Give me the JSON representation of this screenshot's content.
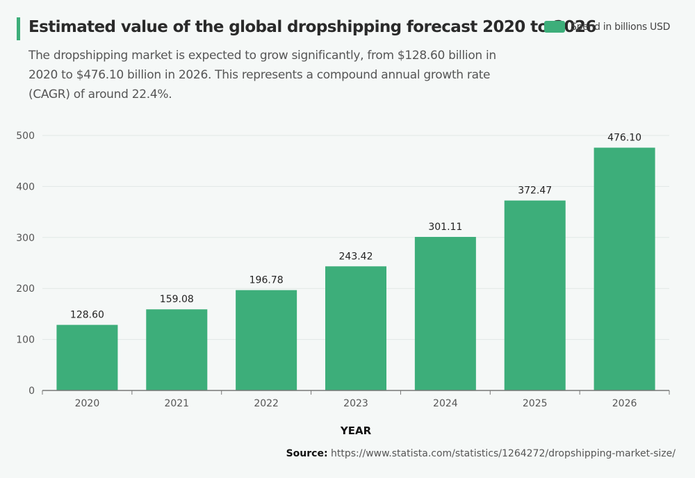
{
  "title": "Estimated value of the global dropshipping forecast 2020 to 2026",
  "subtitle": "The dropshipping market is expected to grow significantly, from $128.60 billion in 2020 to $476.10 billion in 2026. This represents a compound annual growth rate (CAGR) of around 22.4%.",
  "source_label": "Source:",
  "source_url": "https://www.statista.com/statistics/1264272/dropshipping-market-size/",
  "colors": {
    "bar": "#3dae7a",
    "accent": "#3dae7a",
    "background": "#f5f8f7"
  },
  "chart_data": {
    "type": "bar",
    "categories": [
      "2020",
      "2021",
      "2022",
      "2023",
      "2024",
      "2025",
      "2026"
    ],
    "series": [
      {
        "name": "Spend in billions USD",
        "values": [
          128.6,
          159.08,
          196.78,
          243.42,
          301.11,
          372.47,
          476.1
        ]
      }
    ],
    "data_labels": [
      "128.60",
      "159.08",
      "196.78",
      "243.42",
      "301.11",
      "372.47",
      "476.10"
    ],
    "xlabel": "YEAR",
    "ylabel": "",
    "ylim": [
      0,
      500
    ],
    "yticks": [
      "0",
      "100",
      "200",
      "300",
      "400",
      "500"
    ],
    "grid": true,
    "legend": "top-right"
  }
}
